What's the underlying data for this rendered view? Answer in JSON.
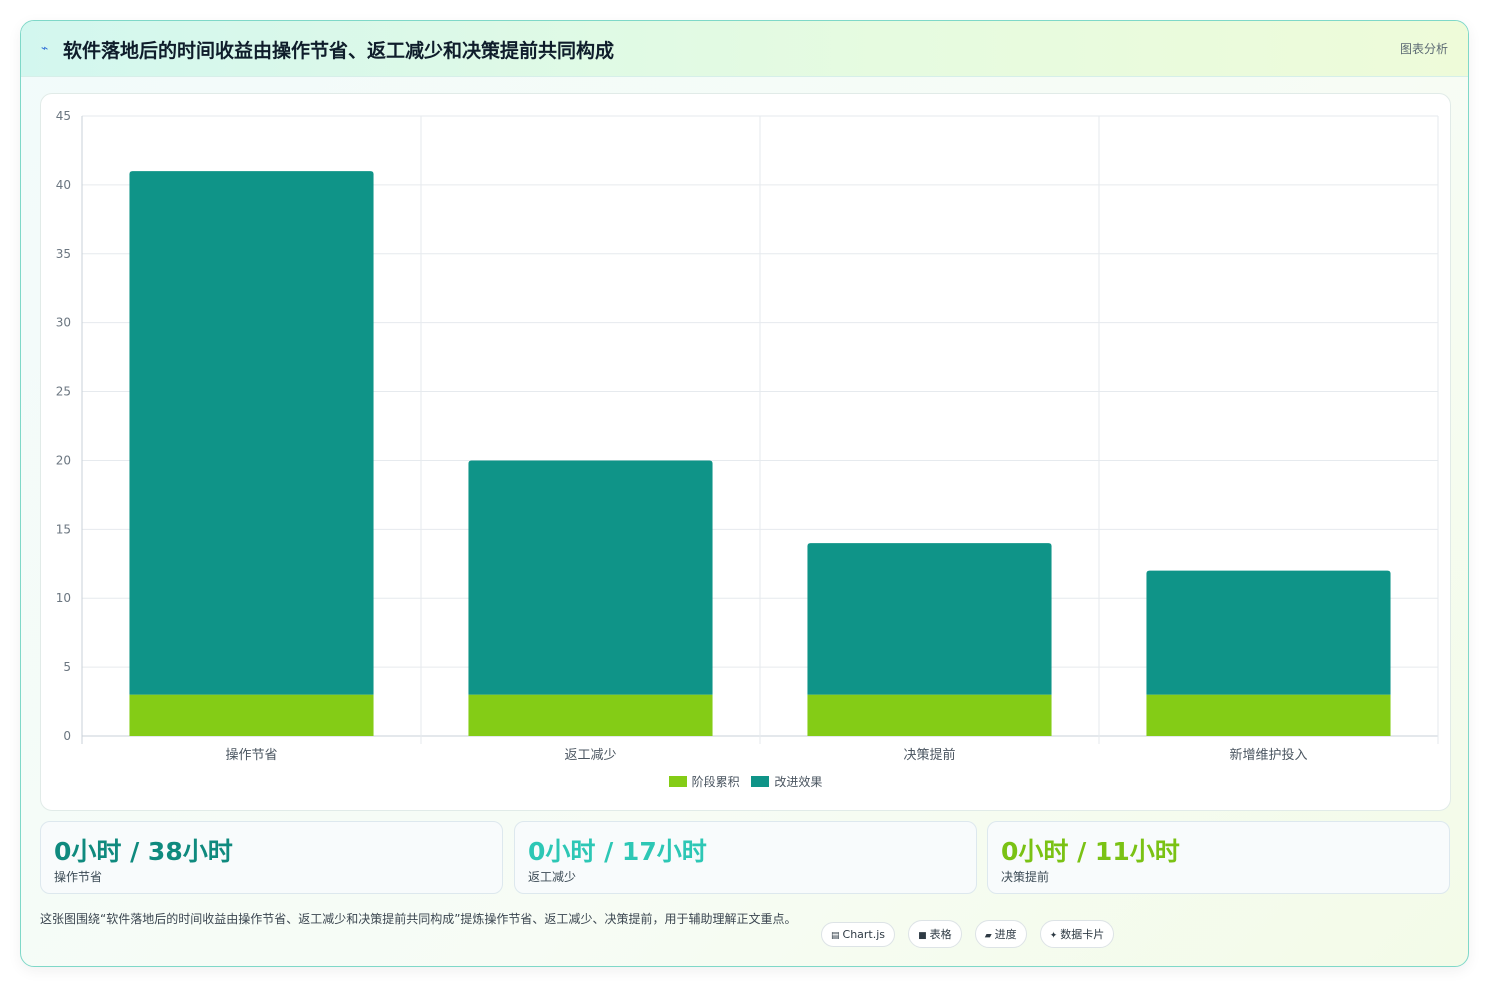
{
  "header": {
    "icon": "sparkle-icon",
    "title": "软件落地后的时间收益由操作节省、返工减少和决策提前共同构成",
    "tag": "图表分析"
  },
  "chart_data": {
    "type": "bar",
    "stacked": true,
    "categories": [
      "操作节省",
      "返工减少",
      "决策提前",
      "新增维护投入"
    ],
    "series": [
      {
        "name": "阶段累积",
        "color": "#84cc16",
        "values": [
          3,
          3,
          3,
          3
        ]
      },
      {
        "name": "改进效果",
        "color": "#0f9488",
        "values": [
          38,
          17,
          11,
          9
        ]
      }
    ],
    "ylim": [
      0,
      45
    ],
    "yticks": [
      0,
      5,
      10,
      15,
      20,
      25,
      30,
      35,
      40,
      45
    ],
    "grid": true,
    "legend": "bottom"
  },
  "stats": [
    {
      "value": "0小时 / 38小时",
      "label": "操作节省",
      "color": "#0f8a7e"
    },
    {
      "value": "0小时 / 17小时",
      "label": "返工减少",
      "color": "#2dc7b5"
    },
    {
      "value": "0小时 / 11小时",
      "label": "决策提前",
      "color": "#7ac214"
    }
  ],
  "footer": {
    "text": "这张图围绕“软件落地后的时间收益由操作节省、返工减少和决策提前共同构成”提炼操作节省、返工减少、决策提前，用于辅助理解正文重点。",
    "chips": [
      {
        "icon": "chart-icon",
        "glyph": "▤",
        "label": "Chart.js"
      },
      {
        "icon": "table-icon",
        "glyph": "■",
        "label": "表格"
      },
      {
        "icon": "progress-icon",
        "glyph": "▰",
        "label": "进度"
      },
      {
        "icon": "card-icon",
        "glyph": "✦",
        "label": "数据卡片"
      }
    ]
  }
}
